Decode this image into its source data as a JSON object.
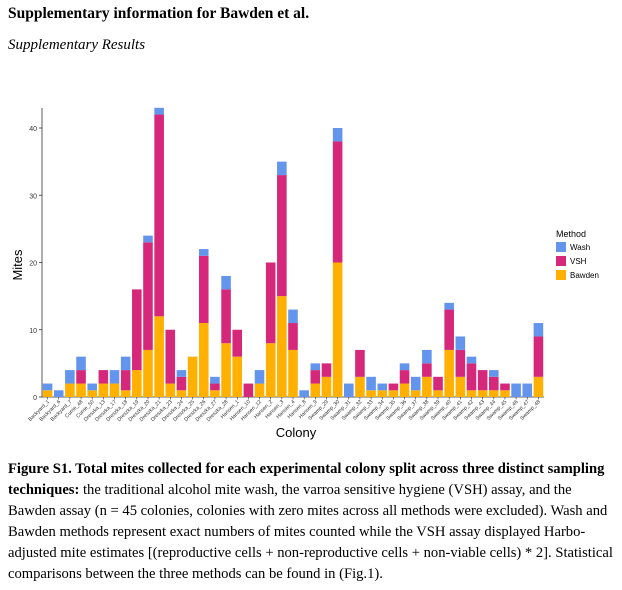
{
  "header": {
    "title": "Supplementary information for Bawden et al.",
    "subtitle": "Supplementary Results"
  },
  "caption": {
    "label": "Figure S1. Total mites collected for each experimental colony split across three distinct sampling techniques:",
    "text": " the traditional alcohol mite wash, the varroa sensitive hygiene (VSH) assay, and the Bawden assay (n = 45 colonies, colonies with zero mites across all methods were excluded). Wash and Bawden methods represent exact numbers of mites counted while the VSH assay displayed Harbo-adjusted mite estimates [(reproductive cells + non-reproductive cells + non-viable cells) * 2]. Statistical comparisons between the three methods can be found in (Fig.1)."
  },
  "colors": {
    "Wash": "#6495ED",
    "VSH": "#D6287A",
    "Bawden": "#FFB000"
  },
  "chart_data": {
    "type": "bar",
    "stacked": true,
    "xlabel": "Colony",
    "ylabel": "Mites",
    "ylim": [
      0,
      43
    ],
    "yticks": [
      0,
      10,
      20,
      30,
      40
    ],
    "legend": {
      "title": "Method",
      "placement": "right",
      "entries": [
        "Wash",
        "VSH",
        "Bawden"
      ]
    },
    "categories": [
      "Backyard_1",
      "Backyard_6",
      "Backyard_7",
      "Currie_48",
      "Currie_50",
      "Dreszka_13",
      "Dreszka_17",
      "Dreszka_18",
      "Dreszka_19",
      "Dreszka_20",
      "Dreszka_21",
      "Dreszka_23",
      "Dreszka_24",
      "Dreszka_25",
      "Dreszka_26",
      "Dreszka_27",
      "Dreszka_28",
      "Hansen_1",
      "Hansen_10",
      "Hansen_12",
      "Hansen_2",
      "Hansen_3",
      "Hansen_4",
      "Hansen_8",
      "Hansen_9",
      "Swamp_29",
      "Swamp_30",
      "Swamp_31",
      "Swamp_32",
      "Swamp_33",
      "Swamp_34",
      "Swamp_35",
      "Swamp_36",
      "Swamp_37",
      "Swamp_38",
      "Swamp_39",
      "Swamp_40",
      "Swamp_41",
      "Swamp_42",
      "Swamp_43",
      "Swamp_44",
      "Swamp_45",
      "Swamp_46",
      "Swamp_47",
      "Swamp_48"
    ],
    "series": [
      {
        "name": "Bawden",
        "values": [
          1,
          0,
          2,
          2,
          1,
          2,
          2,
          1,
          4,
          7,
          12,
          2,
          1,
          6,
          11,
          1,
          8,
          6,
          0,
          2,
          8,
          15,
          7,
          0,
          2,
          3,
          20,
          0,
          3,
          1,
          1,
          1,
          2,
          1,
          3,
          1,
          7,
          3,
          1,
          1,
          1,
          1,
          0,
          0,
          3
        ]
      },
      {
        "name": "VSH",
        "values": [
          0,
          0,
          0,
          2,
          0,
          2,
          0,
          3,
          12,
          16,
          30,
          8,
          2,
          0,
          10,
          1,
          8,
          4,
          2,
          0,
          12,
          18,
          4,
          0,
          2,
          2,
          18,
          0,
          4,
          0,
          0,
          1,
          2,
          0,
          2,
          2,
          6,
          4,
          4,
          3,
          2,
          1,
          0,
          0,
          6
        ]
      },
      {
        "name": "Wash",
        "values": [
          1,
          1,
          2,
          2,
          1,
          0,
          2,
          2,
          0,
          1,
          1,
          0,
          1,
          0,
          1,
          1,
          2,
          0,
          0,
          2,
          0,
          2,
          2,
          1,
          1,
          0,
          2,
          2,
          0,
          2,
          1,
          0,
          1,
          2,
          2,
          0,
          1,
          2,
          1,
          0,
          1,
          0,
          2,
          2,
          2
        ]
      }
    ]
  }
}
